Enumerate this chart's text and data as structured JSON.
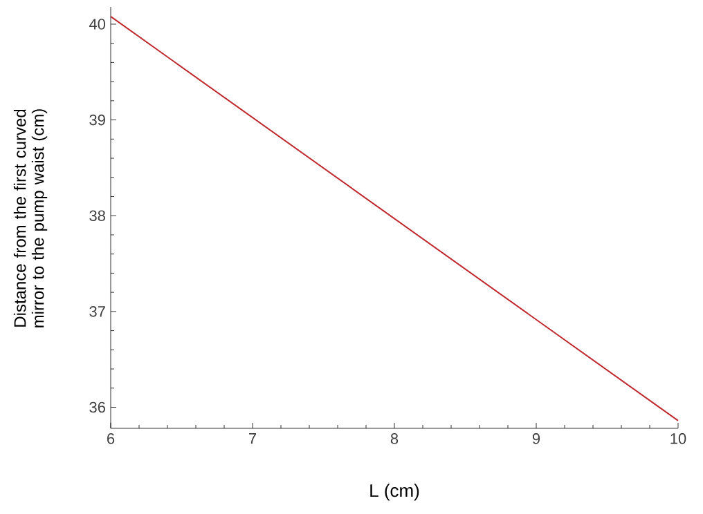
{
  "chart_data": {
    "type": "line",
    "xlabel": "L (cm)",
    "ylabel": "Distance from the first curved mirror to the pump waist (cm)",
    "x": [
      6,
      10
    ],
    "series": [
      {
        "color": "#c0282d",
        "values": [
          40.08,
          35.86
        ]
      }
    ],
    "xlim": [
      6,
      10
    ],
    "ylim": [
      35.78,
      40.18
    ],
    "xticks": [
      6,
      7,
      8,
      9,
      10
    ],
    "yticks": [
      36,
      37,
      38,
      39,
      40
    ],
    "grid": false,
    "marker": "none",
    "line_style": "solid"
  }
}
